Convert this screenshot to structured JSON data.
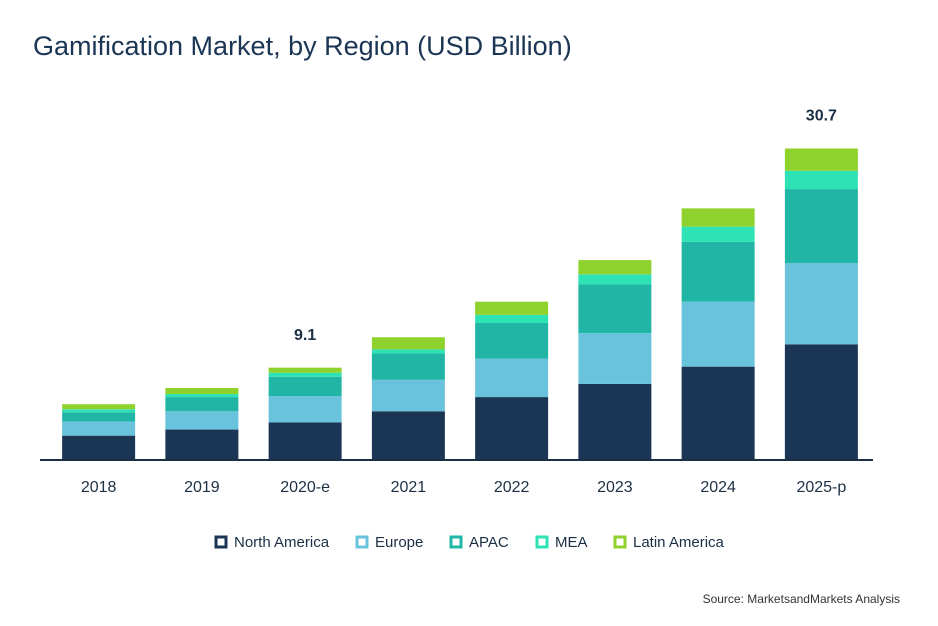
{
  "chart_data": {
    "type": "stacked_bar",
    "title": "Gamification Market, by Region (USD Billion)",
    "categories": [
      "2018",
      "2019",
      "2020-e",
      "2021",
      "2022",
      "2023",
      "2024",
      "2025-p"
    ],
    "series": [
      {
        "name": "North America",
        "color": "#1b3554",
        "values": [
          2.4,
          3.0,
          3.7,
          4.8,
          6.2,
          7.5,
          9.2,
          11.4
        ]
      },
      {
        "name": "Europe",
        "color": "#69c3dc",
        "values": [
          1.4,
          1.8,
          2.6,
          3.1,
          3.8,
          5.0,
          6.4,
          8.0
        ]
      },
      {
        "name": "APAC",
        "color": "#21b5a5",
        "values": [
          0.9,
          1.4,
          1.9,
          2.6,
          3.5,
          4.8,
          5.9,
          7.3
        ]
      },
      {
        "name": "MEA",
        "color": "#2de3b5",
        "values": [
          0.3,
          0.3,
          0.4,
          0.4,
          0.8,
          1.0,
          1.5,
          1.8
        ]
      },
      {
        "name": "Latin America",
        "color": "#8fd22e",
        "values": [
          0.5,
          0.6,
          0.5,
          1.2,
          1.3,
          1.4,
          1.8,
          2.2
        ]
      }
    ],
    "totals": [
      null,
      null,
      9.1,
      null,
      null,
      null,
      null,
      30.7
    ],
    "ylim": [
      0,
      34
    ],
    "source": "Source: MarketsandMarkets Analysis"
  }
}
